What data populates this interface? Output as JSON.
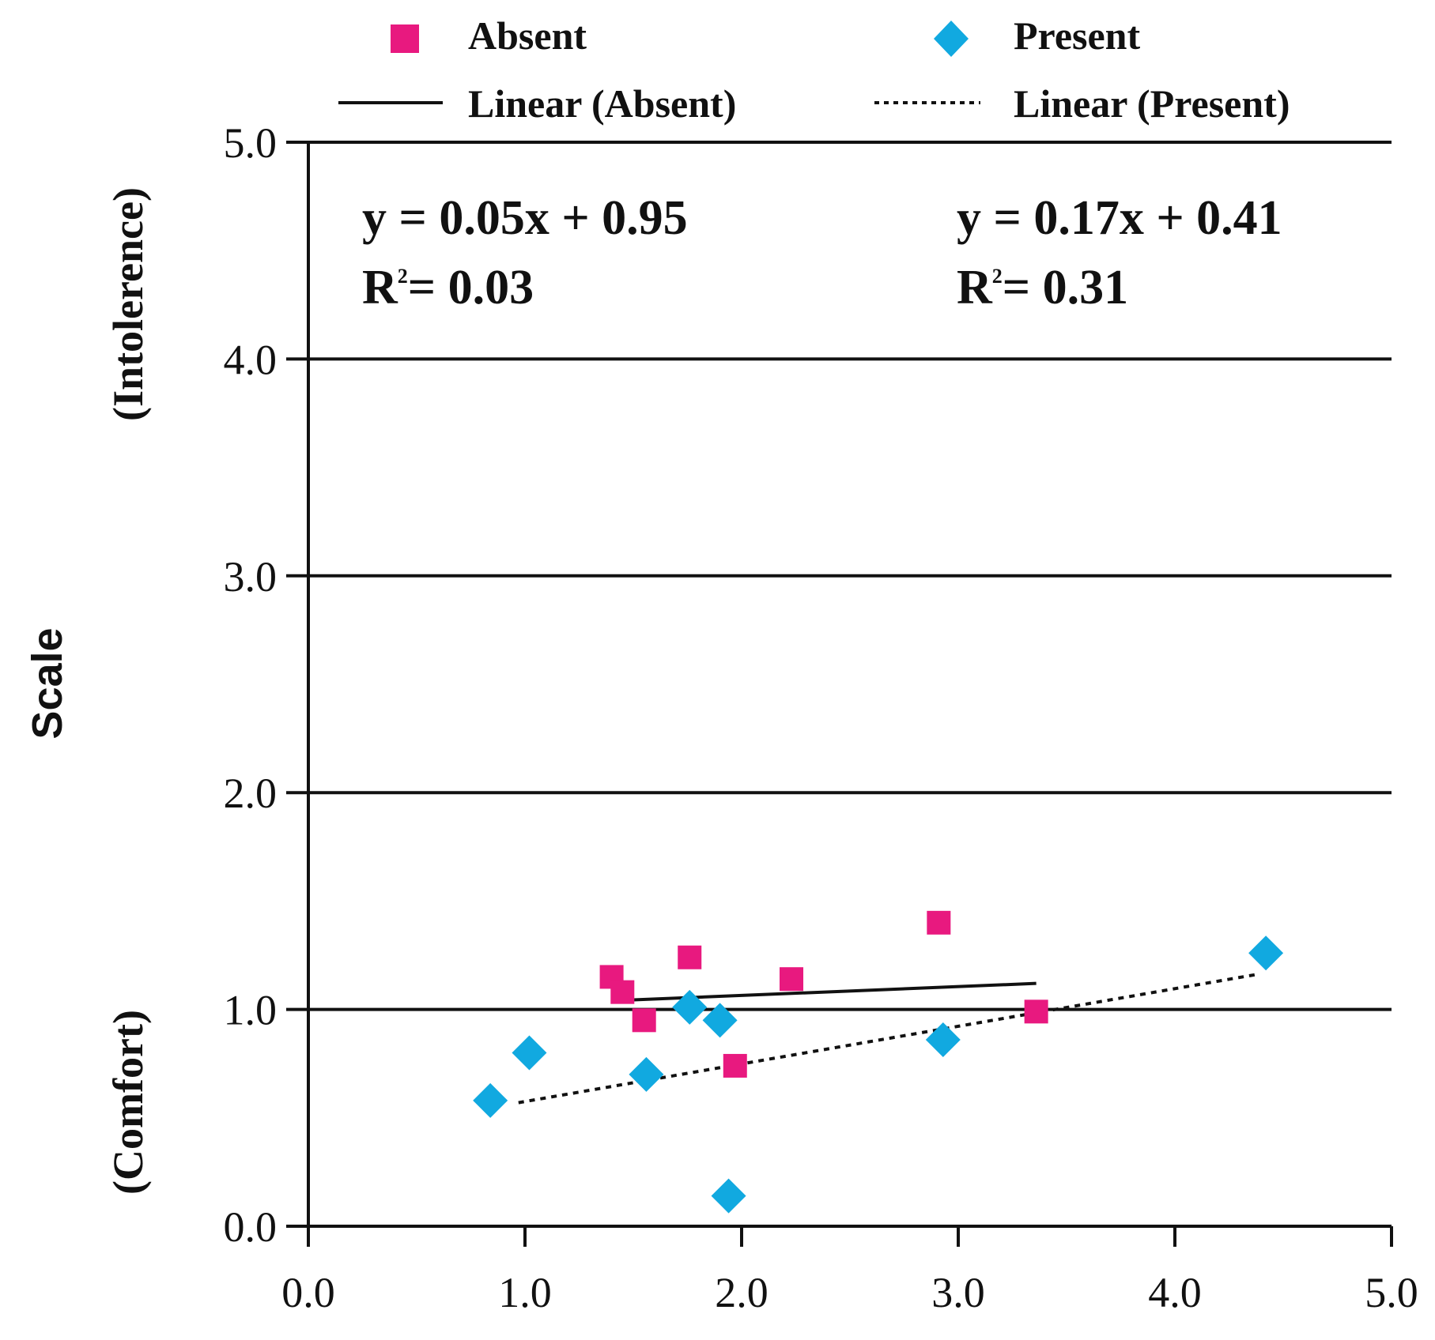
{
  "chart_data": {
    "type": "scatter",
    "title": "",
    "xlabel": "",
    "ylabel": "Scale",
    "ylabel_top": "(Intolerence)",
    "ylabel_bottom": "(Comfort)",
    "xlim": [
      0,
      5
    ],
    "ylim": [
      0,
      5
    ],
    "x_ticks": [
      "0.0",
      "1.0",
      "2.0",
      "3.0",
      "4.0",
      "5.0"
    ],
    "y_ticks": [
      "0.0",
      "1.0",
      "2.0",
      "3.0",
      "4.0",
      "5.0"
    ],
    "grid": "horizontal",
    "legend_position": "top",
    "colors": {
      "absent": "#e8197f",
      "present": "#11a9e0",
      "ink": "#111111"
    },
    "series": [
      {
        "name": "Absent",
        "marker": "square",
        "points": [
          [
            1.4,
            1.15
          ],
          [
            1.45,
            1.08
          ],
          [
            1.55,
            0.95
          ],
          [
            1.76,
            1.24
          ],
          [
            1.97,
            0.74
          ],
          [
            2.23,
            1.14
          ],
          [
            2.91,
            1.4
          ],
          [
            3.36,
            0.99
          ]
        ]
      },
      {
        "name": "Present",
        "marker": "diamond",
        "points": [
          [
            0.84,
            0.58
          ],
          [
            1.02,
            0.8
          ],
          [
            1.56,
            0.7
          ],
          [
            1.76,
            1.01
          ],
          [
            1.9,
            0.95
          ],
          [
            1.94,
            0.14
          ],
          [
            2.93,
            0.86
          ],
          [
            4.42,
            1.26
          ]
        ]
      }
    ],
    "trendlines": [
      {
        "name": "Linear (Absent)",
        "style": "solid",
        "x": [
          1.4,
          3.36
        ],
        "y": [
          1.04,
          1.12
        ]
      },
      {
        "name": "Linear (Present)",
        "style": "dotted",
        "x": [
          0.97,
          4.37
        ],
        "y": [
          0.57,
          1.16
        ]
      }
    ],
    "annotations": {
      "absent": {
        "equation": "y = 0.05x + 0.95",
        "r2_prefix": "R",
        "r2_sup": "2",
        "r2_value": "= 0.03"
      },
      "present": {
        "equation": "y = 0.17x + 0.41",
        "r2_prefix": "R",
        "r2_sup": "2",
        "r2_value": "= 0.31"
      }
    }
  }
}
